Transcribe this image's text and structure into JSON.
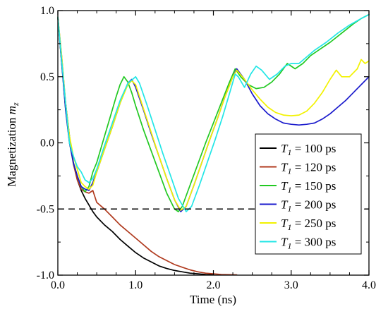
{
  "chart_data": {
    "type": "line",
    "xlabel": "Time (ns)",
    "ylabel": {
      "main": "Magnetization ",
      "var": "m",
      "sub": "z"
    },
    "xlim": [
      0.0,
      4.0
    ],
    "ylim": [
      -1.0,
      1.0
    ],
    "xticks": [
      {
        "v": 0.0,
        "label": "0.0"
      },
      {
        "v": 1.0,
        "label": "1.0"
      },
      {
        "v": 2.0,
        "label": "2.0"
      },
      {
        "v": 3.0,
        "label": "3.0"
      },
      {
        "v": 4.0,
        "label": "4.0"
      }
    ],
    "yticks": [
      {
        "v": 1.0,
        "label": "1.0"
      },
      {
        "v": 0.5,
        "label": "0.5"
      },
      {
        "v": 0.0,
        "label": "0.0"
      },
      {
        "v": -0.5,
        "label": "-0.5"
      },
      {
        "v": -1.0,
        "label": "-1.0"
      }
    ],
    "grid": false,
    "legend_position": "right",
    "reference_line": {
      "y": -0.5,
      "style": "dashed",
      "color": "#000000"
    },
    "series": [
      {
        "legend": {
          "var": "T",
          "sub": "1",
          "text": " = 100 ps"
        },
        "color": "#000000",
        "points": [
          [
            0.0,
            0.95
          ],
          [
            0.05,
            0.6
          ],
          [
            0.1,
            0.3
          ],
          [
            0.15,
            0.05
          ],
          [
            0.2,
            -0.15
          ],
          [
            0.25,
            -0.28
          ],
          [
            0.3,
            -0.36
          ],
          [
            0.35,
            -0.42
          ],
          [
            0.4,
            -0.47
          ],
          [
            0.45,
            -0.52
          ],
          [
            0.5,
            -0.56
          ],
          [
            0.6,
            -0.62
          ],
          [
            0.7,
            -0.67
          ],
          [
            0.8,
            -0.73
          ],
          [
            0.9,
            -0.78
          ],
          [
            1.0,
            -0.83
          ],
          [
            1.1,
            -0.87
          ],
          [
            1.2,
            -0.9
          ],
          [
            1.3,
            -0.93
          ],
          [
            1.4,
            -0.95
          ],
          [
            1.5,
            -0.965
          ],
          [
            1.6,
            -0.975
          ],
          [
            1.7,
            -0.985
          ],
          [
            1.8,
            -0.99
          ],
          [
            1.9,
            -0.995
          ],
          [
            2.0,
            -0.997
          ]
        ]
      },
      {
        "legend": {
          "var": "T",
          "sub": "1",
          "text": " = 120 ps"
        },
        "color": "#b03a1e",
        "points": [
          [
            0.0,
            0.95
          ],
          [
            0.05,
            0.65
          ],
          [
            0.1,
            0.3
          ],
          [
            0.15,
            0.02
          ],
          [
            0.2,
            -0.16
          ],
          [
            0.25,
            -0.28
          ],
          [
            0.3,
            -0.35
          ],
          [
            0.35,
            -0.37
          ],
          [
            0.4,
            -0.38
          ],
          [
            0.45,
            -0.36
          ],
          [
            0.5,
            -0.45
          ],
          [
            0.6,
            -0.5
          ],
          [
            0.7,
            -0.56
          ],
          [
            0.8,
            -0.62
          ],
          [
            0.9,
            -0.67
          ],
          [
            1.0,
            -0.72
          ],
          [
            1.1,
            -0.77
          ],
          [
            1.2,
            -0.82
          ],
          [
            1.3,
            -0.86
          ],
          [
            1.4,
            -0.89
          ],
          [
            1.5,
            -0.92
          ],
          [
            1.6,
            -0.94
          ],
          [
            1.7,
            -0.96
          ],
          [
            1.8,
            -0.975
          ],
          [
            1.9,
            -0.985
          ],
          [
            2.0,
            -0.99
          ],
          [
            2.1,
            -0.995
          ],
          [
            2.3,
            -0.998
          ]
        ]
      },
      {
        "legend": {
          "var": "T",
          "sub": "1",
          "text": " = 150 ps"
        },
        "color": "#22c922",
        "points": [
          [
            0.0,
            0.95
          ],
          [
            0.05,
            0.6
          ],
          [
            0.1,
            0.25
          ],
          [
            0.15,
            0.0
          ],
          [
            0.2,
            -0.15
          ],
          [
            0.25,
            -0.25
          ],
          [
            0.3,
            -0.33
          ],
          [
            0.35,
            -0.37
          ],
          [
            0.4,
            -0.33
          ],
          [
            0.45,
            -0.22
          ],
          [
            0.5,
            -0.15
          ],
          [
            0.55,
            -0.05
          ],
          [
            0.6,
            0.05
          ],
          [
            0.65,
            0.15
          ],
          [
            0.7,
            0.25
          ],
          [
            0.75,
            0.35
          ],
          [
            0.8,
            0.44
          ],
          [
            0.85,
            0.5
          ],
          [
            0.9,
            0.46
          ],
          [
            0.95,
            0.38
          ],
          [
            1.0,
            0.28
          ],
          [
            1.1,
            0.1
          ],
          [
            1.2,
            -0.06
          ],
          [
            1.3,
            -0.22
          ],
          [
            1.4,
            -0.38
          ],
          [
            1.5,
            -0.5
          ],
          [
            1.55,
            -0.52
          ],
          [
            1.6,
            -0.48
          ],
          [
            1.7,
            -0.32
          ],
          [
            1.8,
            -0.16
          ],
          [
            1.9,
            0.0
          ],
          [
            2.0,
            0.15
          ],
          [
            2.1,
            0.3
          ],
          [
            2.2,
            0.45
          ],
          [
            2.28,
            0.56
          ],
          [
            2.35,
            0.5
          ],
          [
            2.45,
            0.44
          ],
          [
            2.55,
            0.41
          ],
          [
            2.65,
            0.42
          ],
          [
            2.75,
            0.46
          ],
          [
            2.85,
            0.52
          ],
          [
            2.95,
            0.6
          ],
          [
            3.05,
            0.56
          ],
          [
            3.15,
            0.6
          ],
          [
            3.25,
            0.66
          ],
          [
            3.35,
            0.7
          ],
          [
            3.5,
            0.76
          ],
          [
            3.65,
            0.83
          ],
          [
            3.8,
            0.9
          ],
          [
            3.9,
            0.94
          ],
          [
            4.0,
            0.97
          ]
        ]
      },
      {
        "legend": {
          "var": "T",
          "sub": "1",
          "text": " = 200 ps"
        },
        "color": "#1a1acc",
        "points": [
          [
            0.0,
            0.95
          ],
          [
            0.05,
            0.6
          ],
          [
            0.1,
            0.25
          ],
          [
            0.15,
            0.0
          ],
          [
            0.2,
            -0.15
          ],
          [
            0.25,
            -0.25
          ],
          [
            0.3,
            -0.33
          ],
          [
            0.35,
            -0.35
          ],
          [
            0.4,
            -0.36
          ],
          [
            0.45,
            -0.3
          ],
          [
            0.5,
            -0.22
          ],
          [
            0.6,
            -0.05
          ],
          [
            0.7,
            0.12
          ],
          [
            0.8,
            0.3
          ],
          [
            0.9,
            0.45
          ],
          [
            0.95,
            0.48
          ],
          [
            1.0,
            0.42
          ],
          [
            1.1,
            0.25
          ],
          [
            1.2,
            0.07
          ],
          [
            1.3,
            -0.1
          ],
          [
            1.4,
            -0.27
          ],
          [
            1.5,
            -0.43
          ],
          [
            1.58,
            -0.52
          ],
          [
            1.65,
            -0.48
          ],
          [
            1.75,
            -0.32
          ],
          [
            1.85,
            -0.15
          ],
          [
            1.95,
            0.02
          ],
          [
            2.05,
            0.18
          ],
          [
            2.15,
            0.35
          ],
          [
            2.25,
            0.5
          ],
          [
            2.3,
            0.56
          ],
          [
            2.4,
            0.48
          ],
          [
            2.5,
            0.37
          ],
          [
            2.6,
            0.28
          ],
          [
            2.7,
            0.22
          ],
          [
            2.8,
            0.18
          ],
          [
            2.9,
            0.15
          ],
          [
            3.0,
            0.14
          ],
          [
            3.1,
            0.135
          ],
          [
            3.2,
            0.14
          ],
          [
            3.3,
            0.15
          ],
          [
            3.4,
            0.18
          ],
          [
            3.5,
            0.22
          ],
          [
            3.6,
            0.27
          ],
          [
            3.7,
            0.32
          ],
          [
            3.8,
            0.38
          ],
          [
            3.9,
            0.44
          ],
          [
            4.0,
            0.5
          ]
        ]
      },
      {
        "legend": {
          "var": "T",
          "sub": "1",
          "text": " = 250 ps"
        },
        "color": "#f2f200",
        "points": [
          [
            0.0,
            0.95
          ],
          [
            0.05,
            0.65
          ],
          [
            0.1,
            0.3
          ],
          [
            0.15,
            0.05
          ],
          [
            0.2,
            -0.1
          ],
          [
            0.25,
            -0.2
          ],
          [
            0.3,
            -0.3
          ],
          [
            0.35,
            -0.33
          ],
          [
            0.4,
            -0.35
          ],
          [
            0.45,
            -0.32
          ],
          [
            0.5,
            -0.22
          ],
          [
            0.6,
            -0.05
          ],
          [
            0.7,
            0.12
          ],
          [
            0.8,
            0.3
          ],
          [
            0.9,
            0.44
          ],
          [
            0.95,
            0.47
          ],
          [
            1.0,
            0.44
          ],
          [
            1.1,
            0.26
          ],
          [
            1.2,
            0.08
          ],
          [
            1.3,
            -0.1
          ],
          [
            1.4,
            -0.27
          ],
          [
            1.5,
            -0.43
          ],
          [
            1.58,
            -0.51
          ],
          [
            1.65,
            -0.48
          ],
          [
            1.75,
            -0.32
          ],
          [
            1.85,
            -0.15
          ],
          [
            1.95,
            0.02
          ],
          [
            2.05,
            0.18
          ],
          [
            2.15,
            0.35
          ],
          [
            2.25,
            0.5
          ],
          [
            2.3,
            0.55
          ],
          [
            2.4,
            0.48
          ],
          [
            2.5,
            0.4
          ],
          [
            2.6,
            0.33
          ],
          [
            2.7,
            0.27
          ],
          [
            2.8,
            0.23
          ],
          [
            2.9,
            0.21
          ],
          [
            3.0,
            0.205
          ],
          [
            3.1,
            0.21
          ],
          [
            3.2,
            0.24
          ],
          [
            3.3,
            0.3
          ],
          [
            3.4,
            0.38
          ],
          [
            3.5,
            0.48
          ],
          [
            3.58,
            0.55
          ],
          [
            3.65,
            0.5
          ],
          [
            3.75,
            0.5
          ],
          [
            3.85,
            0.56
          ],
          [
            3.9,
            0.63
          ],
          [
            3.95,
            0.6
          ],
          [
            4.0,
            0.62
          ]
        ]
      },
      {
        "legend": {
          "var": "T",
          "sub": "1",
          "text": " = 300 ps"
        },
        "color": "#22e6e6",
        "points": [
          [
            0.0,
            0.95
          ],
          [
            0.05,
            0.62
          ],
          [
            0.1,
            0.3
          ],
          [
            0.15,
            0.0
          ],
          [
            0.2,
            -0.1
          ],
          [
            0.25,
            -0.18
          ],
          [
            0.3,
            -0.22
          ],
          [
            0.35,
            -0.28
          ],
          [
            0.4,
            -0.3
          ],
          [
            0.45,
            -0.27
          ],
          [
            0.5,
            -0.2
          ],
          [
            0.6,
            -0.02
          ],
          [
            0.7,
            0.15
          ],
          [
            0.8,
            0.32
          ],
          [
            0.9,
            0.45
          ],
          [
            1.0,
            0.5
          ],
          [
            1.05,
            0.45
          ],
          [
            1.15,
            0.28
          ],
          [
            1.25,
            0.1
          ],
          [
            1.35,
            -0.08
          ],
          [
            1.45,
            -0.25
          ],
          [
            1.55,
            -0.42
          ],
          [
            1.65,
            -0.52
          ],
          [
            1.72,
            -0.48
          ],
          [
            1.82,
            -0.32
          ],
          [
            1.92,
            -0.15
          ],
          [
            2.02,
            0.02
          ],
          [
            2.12,
            0.2
          ],
          [
            2.22,
            0.4
          ],
          [
            2.28,
            0.52
          ],
          [
            2.32,
            0.5
          ],
          [
            2.4,
            0.42
          ],
          [
            2.48,
            0.52
          ],
          [
            2.55,
            0.58
          ],
          [
            2.62,
            0.55
          ],
          [
            2.72,
            0.48
          ],
          [
            2.82,
            0.52
          ],
          [
            2.92,
            0.58
          ],
          [
            3.0,
            0.6
          ],
          [
            3.1,
            0.6
          ],
          [
            3.2,
            0.65
          ],
          [
            3.3,
            0.7
          ],
          [
            3.45,
            0.76
          ],
          [
            3.6,
            0.83
          ],
          [
            3.75,
            0.89
          ],
          [
            3.9,
            0.94
          ],
          [
            4.0,
            0.97
          ]
        ]
      }
    ]
  }
}
